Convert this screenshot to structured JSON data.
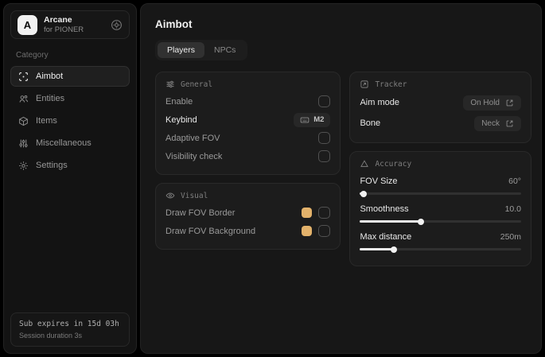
{
  "app": {
    "logo_letter": "A",
    "title": "Arcane",
    "subtitle": "for PIONER"
  },
  "sidebar": {
    "category_label": "Category",
    "items": [
      {
        "label": "Aimbot"
      },
      {
        "label": "Entities"
      },
      {
        "label": "Items"
      },
      {
        "label": "Miscellaneous"
      },
      {
        "label": "Settings"
      }
    ],
    "footer": {
      "sub_expires": "Sub expires in 15d 03h",
      "session_duration": "Session duration 3s"
    }
  },
  "main": {
    "title": "Aimbot",
    "tabs": [
      {
        "label": "Players"
      },
      {
        "label": "NPCs"
      }
    ],
    "general": {
      "title": "General",
      "enable_label": "Enable",
      "keybind_label": "Keybind",
      "keybind_value": "M2",
      "adaptive_fov_label": "Adaptive FOV",
      "visibility_check_label": "Visibility check"
    },
    "visual": {
      "title": "Visual",
      "rows": [
        {
          "label": "Draw FOV Border",
          "color": "#e3b26b"
        },
        {
          "label": "Draw FOV Background",
          "color": "#e3b26b"
        }
      ]
    },
    "tracker": {
      "title": "Tracker",
      "aim_mode_label": "Aim mode",
      "aim_mode_value": "On Hold",
      "bone_label": "Bone",
      "bone_value": "Neck"
    },
    "accuracy": {
      "title": "Accuracy",
      "rows": [
        {
          "label": "FOV Size",
          "value": "60°",
          "percent": 2
        },
        {
          "label": "Smoothness",
          "value": "10.0",
          "percent": 38
        },
        {
          "label": "Max distance",
          "value": "250m",
          "percent": 21
        }
      ]
    }
  }
}
